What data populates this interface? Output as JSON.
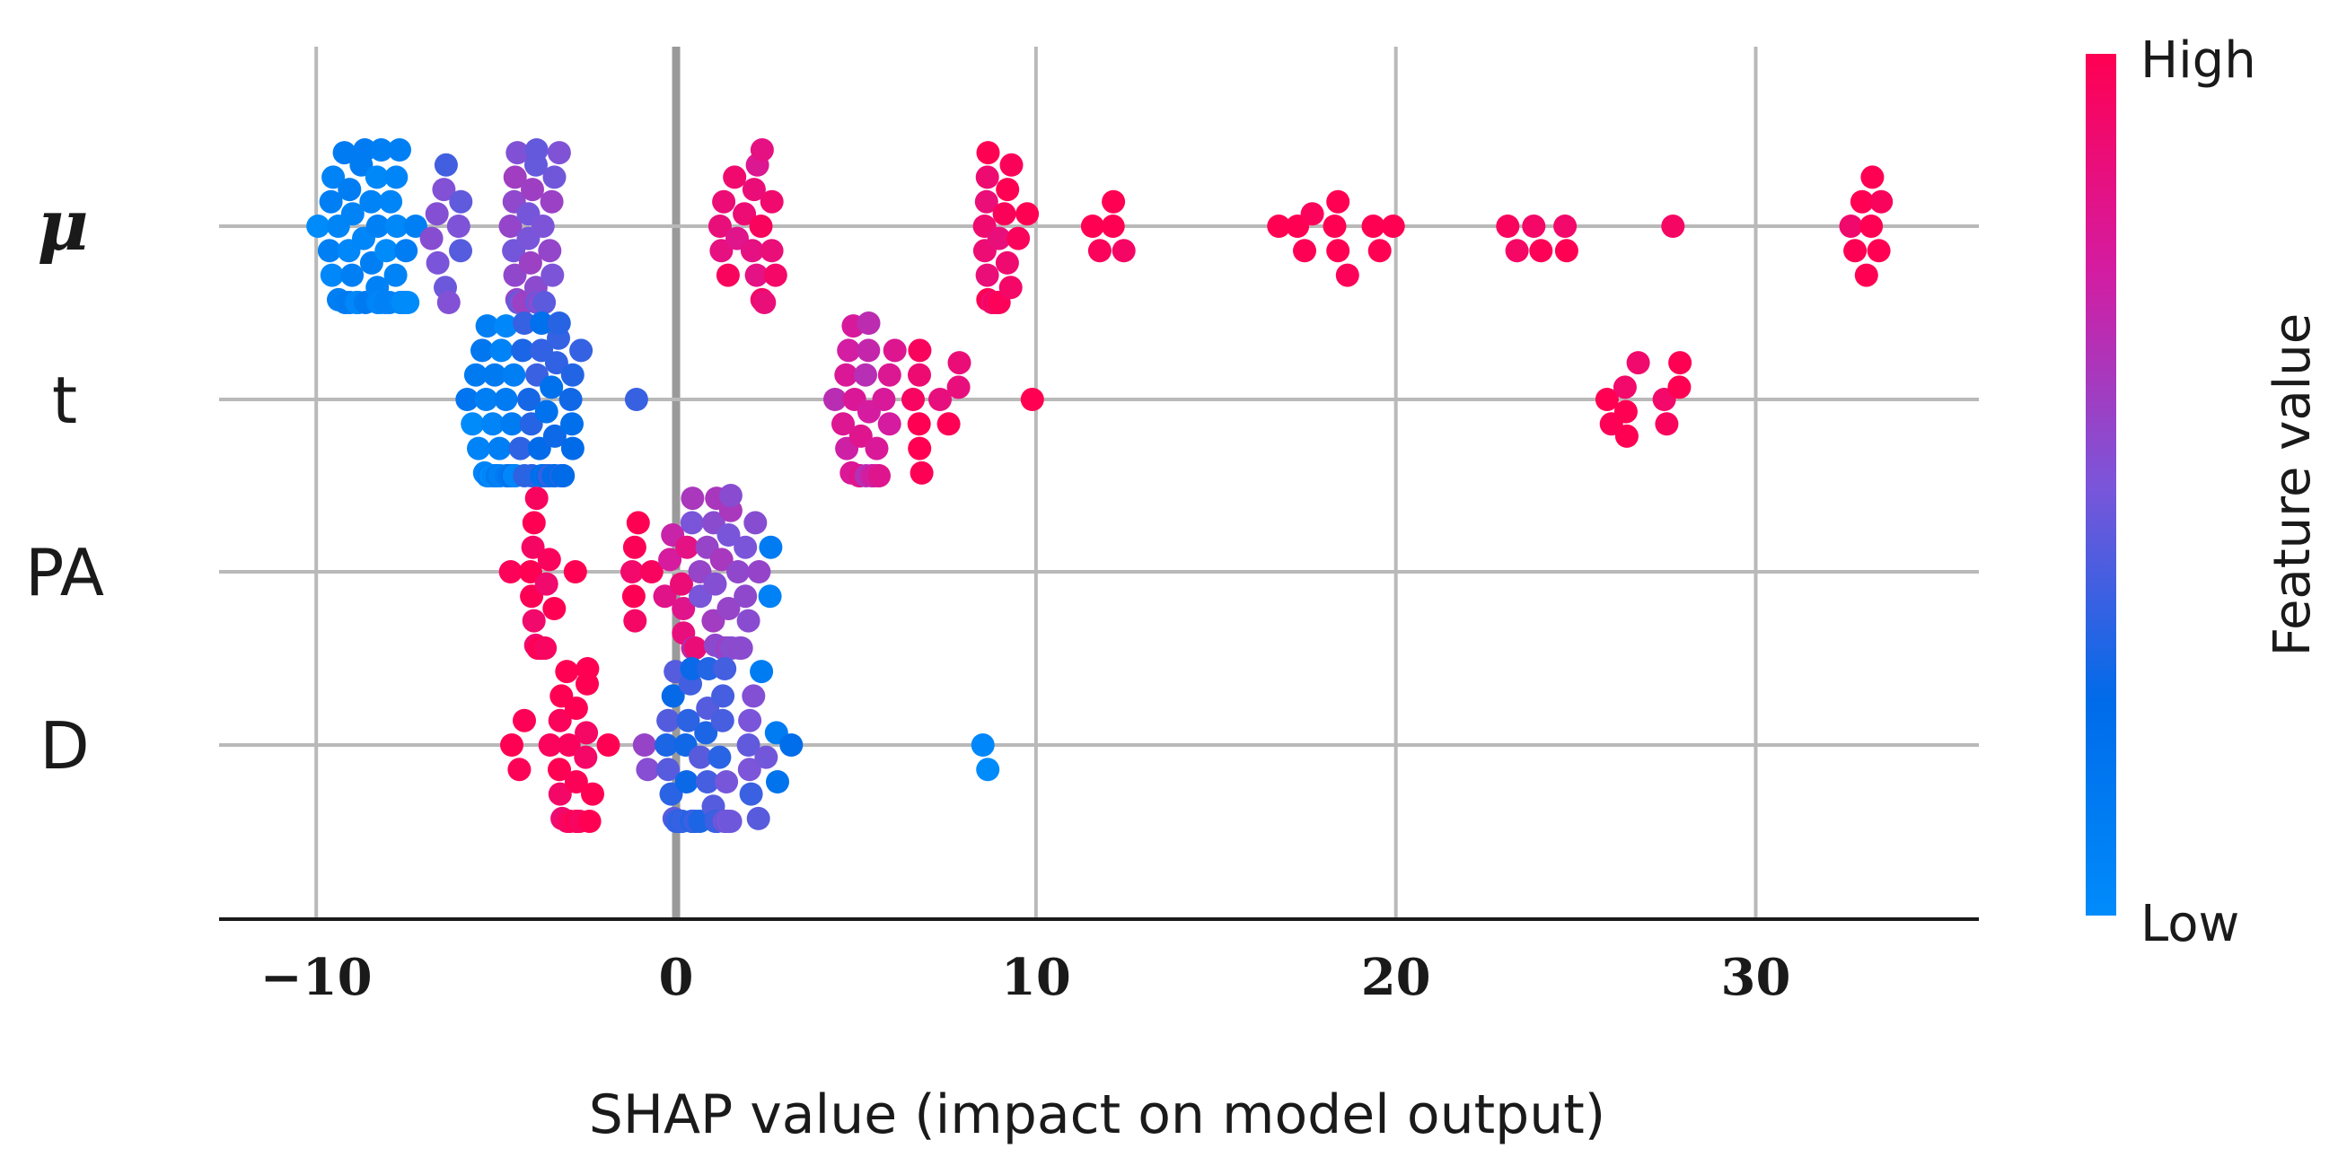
{
  "chart_data": {
    "type": "scatter",
    "subtype": "shap-beeswarm",
    "xlabel": "SHAP value (impact on model output)",
    "xlim": [
      -12.7,
      36.2
    ],
    "xticks": [
      -10,
      0,
      10,
      20,
      30
    ],
    "xtick_labels": [
      "−10",
      "0",
      "10",
      "20",
      "30"
    ],
    "zero_line": 0,
    "grid": true,
    "colorbar": {
      "title": "Feature value",
      "high_label": "High",
      "low_label": "Low",
      "low_color": "#008bfb",
      "high_color": "#ff0052",
      "mid_color": "#7b55d9"
    },
    "features": [
      {
        "name": "μ",
        "groups": [
          {
            "center": -8.6,
            "spread": 1.7,
            "count": 48,
            "fv": 0.06
          },
          {
            "center": -6.3,
            "spread": 0.9,
            "count": 10,
            "fv": 0.45
          },
          {
            "center": -4.1,
            "spread": 1.0,
            "count": 34,
            "fv": 0.52
          },
          {
            "center": 1.9,
            "spread": 1.0,
            "count": 18,
            "fv": 0.88
          },
          {
            "center": 9.0,
            "spread": 0.9,
            "count": 22,
            "fv": 0.95
          },
          {
            "center": 11.9,
            "spread": 0.7,
            "count": 5,
            "fv": 1.0
          },
          {
            "center": 17.3,
            "spread": 0.8,
            "count": 4,
            "fv": 1.0
          },
          {
            "center": 18.4,
            "spread": 0.4,
            "count": 4,
            "fv": 1.0
          },
          {
            "center": 19.6,
            "spread": 0.4,
            "count": 3,
            "fv": 1.0
          },
          {
            "center": 24.2,
            "spread": 1.3,
            "count": 6,
            "fv": 1.0
          },
          {
            "center": 27.7,
            "spread": 0.1,
            "count": 1,
            "fv": 1.0
          },
          {
            "center": 32.9,
            "spread": 0.8,
            "count": 8,
            "fv": 1.0
          }
        ]
      },
      {
        "name": "t",
        "groups": [
          {
            "center": -5.0,
            "spread": 0.9,
            "count": 28,
            "fv": 0.08
          },
          {
            "center": -3.6,
            "spread": 1.0,
            "count": 34,
            "fv": 0.28
          },
          {
            "center": -1.1,
            "spread": 0.1,
            "count": 1,
            "fv": 0.4
          },
          {
            "center": 5.3,
            "spread": 1.0,
            "count": 26,
            "fv": 0.75
          },
          {
            "center": 7.3,
            "spread": 1.0,
            "count": 10,
            "fv": 0.95
          },
          {
            "center": 9.9,
            "spread": 0.1,
            "count": 1,
            "fv": 1.0
          },
          {
            "center": 27.1,
            "spread": 1.8,
            "count": 10,
            "fv": 1.0
          }
        ]
      },
      {
        "name": "PA",
        "groups": [
          {
            "center": -4.6,
            "spread": 0.1,
            "count": 1,
            "fv": 1.0
          },
          {
            "center": -3.8,
            "spread": 0.5,
            "count": 18,
            "fv": 1.0
          },
          {
            "center": -2.8,
            "spread": 0.1,
            "count": 1,
            "fv": 1.0
          },
          {
            "center": -1.0,
            "spread": 0.5,
            "count": 6,
            "fv": 0.98
          },
          {
            "center": 0.2,
            "spread": 0.6,
            "count": 10,
            "fv": 0.8
          },
          {
            "center": 1.3,
            "spread": 1.1,
            "count": 34,
            "fv": 0.55
          },
          {
            "center": 2.8,
            "spread": 0.2,
            "count": 2,
            "fv": 0.1
          }
        ]
      },
      {
        "name": "D",
        "groups": [
          {
            "center": -4.4,
            "spread": 0.3,
            "count": 3,
            "fv": 1.0
          },
          {
            "center": -2.7,
            "spread": 0.9,
            "count": 22,
            "fv": 0.98
          },
          {
            "center": -0.8,
            "spread": 0.2,
            "count": 2,
            "fv": 0.55
          },
          {
            "center": 0.4,
            "spread": 1.0,
            "count": 34,
            "fv": 0.35
          },
          {
            "center": 1.8,
            "spread": 1.0,
            "count": 16,
            "fv": 0.45
          },
          {
            "center": 2.8,
            "spread": 0.5,
            "count": 4,
            "fv": 0.2
          },
          {
            "center": 8.7,
            "spread": 0.4,
            "count": 2,
            "fv": 0.06
          }
        ]
      }
    ]
  }
}
